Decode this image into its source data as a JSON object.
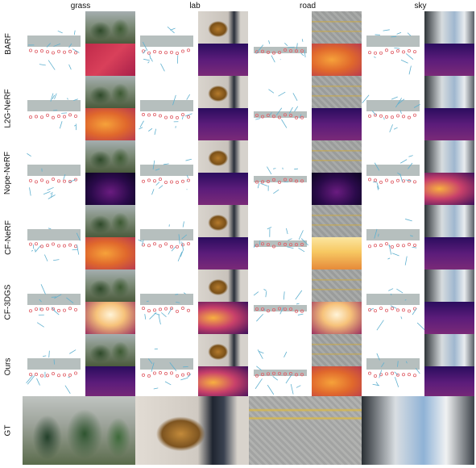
{
  "columns": [
    "grass",
    "lab",
    "road",
    "sky"
  ],
  "methods": [
    "BARF",
    "L2G-NeRF",
    "Nope-NeRF",
    "CF-NeRF",
    "CF-3DGS",
    "Ours"
  ],
  "gt_label": "GT",
  "depth_styles": [
    [
      "dep-pink",
      "dep-purple",
      "dep-orange",
      "dep-purple"
    ],
    [
      "dep-orange",
      "dep-purple",
      "dep-purple",
      "dep-purple"
    ],
    [
      "dep-dark",
      "dep-purple",
      "dep-dark",
      "dep-mix"
    ],
    [
      "dep-orange",
      "dep-purple",
      "dep-yellow",
      "dep-purple"
    ],
    [
      "dep-light",
      "dep-mix",
      "dep-light",
      "dep-purple"
    ],
    [
      "dep-purple",
      "dep-mix",
      "dep-orange",
      "dep-purple"
    ]
  ],
  "colors": {
    "camera_est": "#5fb0cf",
    "camera_gt": "#e0626a",
    "point_cloud": "#7a8a88"
  }
}
